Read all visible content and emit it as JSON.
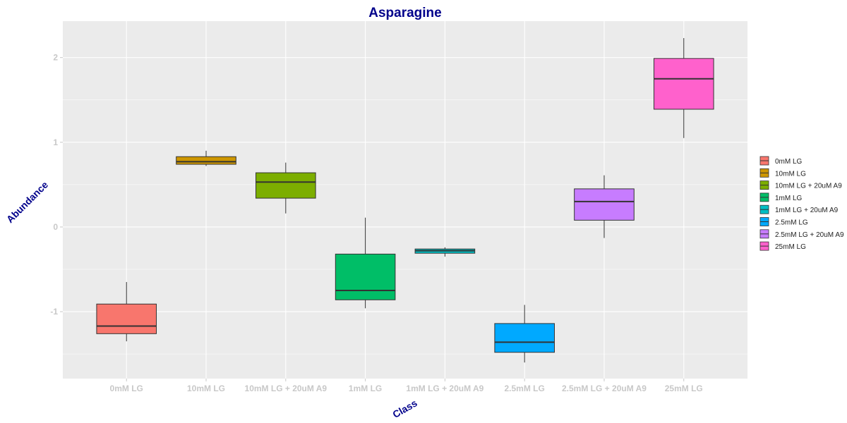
{
  "chart_data": {
    "type": "box",
    "title": "Asparagine",
    "xlabel": "Class",
    "ylabel": "Abundance",
    "ylim": [
      -1.79,
      2.43
    ],
    "yticks": [
      "-1",
      "0",
      "1",
      "2"
    ],
    "categories": [
      "0mM LG",
      "10mM LG",
      "10mM LG + 20uM A9",
      "1mM LG",
      "1mM LG + 20uM A9",
      "2.5mM LG",
      "2.5mM LG + 20uM A9",
      "25mM LG"
    ],
    "boxes": [
      {
        "name": "0mM LG",
        "whisker_low": -1.35,
        "q1": -1.26,
        "median": -1.17,
        "q3": -0.91,
        "whisker_high": -0.65,
        "color": "#F8766D"
      },
      {
        "name": "10mM LG",
        "whisker_low": 0.72,
        "q1": 0.74,
        "median": 0.77,
        "q3": 0.83,
        "whisker_high": 0.9,
        "color": "#CD9600"
      },
      {
        "name": "10mM LG + 20uM A9",
        "whisker_low": 0.16,
        "q1": 0.34,
        "median": 0.53,
        "q3": 0.64,
        "whisker_high": 0.76,
        "color": "#7CAE00"
      },
      {
        "name": "1mM LG",
        "whisker_low": -0.96,
        "q1": -0.86,
        "median": -0.75,
        "q3": -0.32,
        "whisker_high": 0.11,
        "color": "#00BE67"
      },
      {
        "name": "1mM LG + 20uM A9",
        "whisker_low": -0.35,
        "q1": -0.31,
        "median": -0.28,
        "q3": -0.26,
        "whisker_high": -0.24,
        "color": "#00BFC4"
      },
      {
        "name": "2.5mM LG",
        "whisker_low": -1.6,
        "q1": -1.48,
        "median": -1.36,
        "q3": -1.14,
        "whisker_high": -0.92,
        "color": "#00A9FF"
      },
      {
        "name": "2.5mM LG + 20uM A9",
        "whisker_low": -0.13,
        "q1": 0.08,
        "median": 0.3,
        "q3": 0.45,
        "whisker_high": 0.61,
        "color": "#C77CFF"
      },
      {
        "name": "25mM LG",
        "whisker_low": 1.05,
        "q1": 1.39,
        "median": 1.75,
        "q3": 1.99,
        "whisker_high": 2.23,
        "color": "#FF61CC"
      }
    ],
    "legend_position": "right",
    "grid": true
  }
}
